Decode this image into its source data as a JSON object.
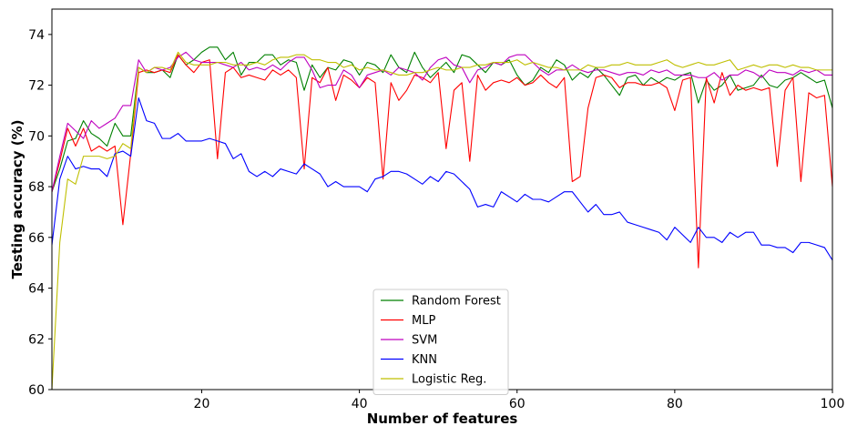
{
  "chart_data": {
    "type": "line",
    "xlabel": "Number of features",
    "ylabel": "Testing accuracy (%)",
    "xlim": [
      1,
      100
    ],
    "ylim": [
      60,
      75
    ],
    "xticks": [
      20,
      40,
      60,
      80,
      100
    ],
    "yticks": [
      60,
      62,
      64,
      66,
      68,
      70,
      72,
      74
    ],
    "grid": false,
    "legend_position": "bottom-center",
    "x": [
      1,
      2,
      3,
      4,
      5,
      6,
      7,
      8,
      9,
      10,
      11,
      12,
      13,
      14,
      15,
      16,
      17,
      18,
      19,
      20,
      21,
      22,
      23,
      24,
      25,
      26,
      27,
      28,
      29,
      30,
      31,
      32,
      33,
      34,
      35,
      36,
      37,
      38,
      39,
      40,
      41,
      42,
      43,
      44,
      45,
      46,
      47,
      48,
      49,
      50,
      51,
      52,
      53,
      54,
      55,
      56,
      57,
      58,
      59,
      60,
      61,
      62,
      63,
      64,
      65,
      66,
      67,
      68,
      69,
      70,
      71,
      72,
      73,
      74,
      75,
      76,
      77,
      78,
      79,
      80,
      81,
      82,
      83,
      84,
      85,
      86,
      87,
      88,
      89,
      90,
      91,
      92,
      93,
      94,
      95,
      96,
      97,
      98,
      99,
      100
    ],
    "series": [
      {
        "name": "Random Forest",
        "color": "#008000",
        "values": [
          67.8,
          68.7,
          69.8,
          69.9,
          70.6,
          70.1,
          69.9,
          69.6,
          70.5,
          70.0,
          70.0,
          72.7,
          72.5,
          72.5,
          72.6,
          72.3,
          73.2,
          72.8,
          73.0,
          73.3,
          73.5,
          73.5,
          73.0,
          73.3,
          72.4,
          72.9,
          72.9,
          73.2,
          73.2,
          72.8,
          73.0,
          72.9,
          71.8,
          72.8,
          72.3,
          72.7,
          72.6,
          73.0,
          72.9,
          72.4,
          72.9,
          72.8,
          72.5,
          73.2,
          72.7,
          72.5,
          73.3,
          72.7,
          72.3,
          72.6,
          72.9,
          72.5,
          73.2,
          73.1,
          72.8,
          72.5,
          72.9,
          72.8,
          73.0,
          72.4,
          72.0,
          72.2,
          72.7,
          72.5,
          73.0,
          72.8,
          72.2,
          72.5,
          72.3,
          72.7,
          72.4,
          72.0,
          71.6,
          72.3,
          72.4,
          72.0,
          72.3,
          72.1,
          72.3,
          72.2,
          72.4,
          72.5,
          71.3,
          72.2,
          71.8,
          72.0,
          72.4,
          71.8,
          71.9,
          72.0,
          72.4,
          72.0,
          71.9,
          72.2,
          72.3,
          72.5,
          72.3,
          72.1,
          72.2,
          71.1
        ]
      },
      {
        "name": "MLP",
        "color": "#ff0000",
        "values": [
          67.8,
          69.0,
          70.3,
          69.6,
          70.3,
          69.4,
          69.6,
          69.4,
          69.6,
          66.5,
          69.3,
          72.5,
          72.6,
          72.5,
          72.6,
          72.5,
          73.2,
          72.8,
          72.5,
          72.9,
          73.0,
          69.1,
          72.5,
          72.7,
          72.3,
          72.4,
          72.3,
          72.2,
          72.6,
          72.4,
          72.6,
          72.3,
          68.7,
          72.3,
          72.1,
          72.7,
          71.4,
          72.4,
          72.2,
          71.9,
          72.3,
          72.1,
          68.3,
          72.1,
          71.4,
          71.8,
          72.4,
          72.3,
          72.1,
          72.5,
          69.5,
          71.8,
          72.1,
          69.0,
          72.4,
          71.8,
          72.1,
          72.2,
          72.1,
          72.3,
          72.0,
          72.1,
          72.4,
          72.1,
          71.9,
          72.3,
          68.2,
          68.4,
          71.1,
          72.3,
          72.4,
          72.3,
          71.9,
          72.1,
          72.1,
          72.0,
          72.0,
          72.1,
          71.9,
          71.0,
          72.2,
          72.3,
          64.8,
          72.3,
          71.3,
          72.5,
          71.6,
          72.0,
          71.8,
          71.9,
          71.8,
          71.9,
          68.8,
          71.8,
          72.3,
          68.2,
          71.7,
          71.5,
          71.6,
          68.0
        ]
      },
      {
        "name": "SVM",
        "color": "#bf00bf",
        "values": [
          67.8,
          69.2,
          70.5,
          70.2,
          69.9,
          70.6,
          70.3,
          70.5,
          70.7,
          71.2,
          71.2,
          73.0,
          72.5,
          72.7,
          72.6,
          72.7,
          73.1,
          73.3,
          73.0,
          72.9,
          72.9,
          72.9,
          72.8,
          72.7,
          72.9,
          72.6,
          72.7,
          72.6,
          72.8,
          72.6,
          72.9,
          73.1,
          73.1,
          72.6,
          71.9,
          72.0,
          72.0,
          72.6,
          72.4,
          71.9,
          72.4,
          72.5,
          72.6,
          72.4,
          72.7,
          72.6,
          72.5,
          72.2,
          72.7,
          73.0,
          73.1,
          72.8,
          72.7,
          72.1,
          72.6,
          72.7,
          72.9,
          72.8,
          73.1,
          73.2,
          73.2,
          72.9,
          72.6,
          72.4,
          72.6,
          72.6,
          72.8,
          72.6,
          72.5,
          72.6,
          72.6,
          72.5,
          72.4,
          72.5,
          72.5,
          72.4,
          72.6,
          72.5,
          72.6,
          72.4,
          72.4,
          72.4,
          72.3,
          72.3,
          72.5,
          72.2,
          72.4,
          72.4,
          72.6,
          72.5,
          72.3,
          72.6,
          72.5,
          72.5,
          72.4,
          72.6,
          72.5,
          72.6,
          72.4,
          72.4
        ]
      },
      {
        "name": "KNN",
        "color": "#0000ff",
        "values": [
          65.7,
          68.3,
          69.2,
          68.7,
          68.8,
          68.7,
          68.7,
          68.4,
          69.3,
          69.4,
          69.2,
          71.5,
          70.6,
          70.5,
          69.9,
          69.9,
          70.1,
          69.8,
          69.8,
          69.8,
          69.9,
          69.8,
          69.7,
          69.1,
          69.3,
          68.6,
          68.4,
          68.6,
          68.4,
          68.7,
          68.6,
          68.5,
          68.9,
          68.7,
          68.5,
          68.0,
          68.2,
          68.0,
          68.0,
          68.0,
          67.8,
          68.3,
          68.4,
          68.6,
          68.6,
          68.5,
          68.3,
          68.1,
          68.4,
          68.2,
          68.6,
          68.5,
          68.2,
          67.9,
          67.2,
          67.3,
          67.2,
          67.8,
          67.6,
          67.4,
          67.7,
          67.5,
          67.5,
          67.4,
          67.6,
          67.8,
          67.8,
          67.4,
          67.0,
          67.3,
          66.9,
          66.9,
          67.0,
          66.6,
          66.5,
          66.4,
          66.3,
          66.2,
          65.9,
          66.4,
          66.1,
          65.8,
          66.4,
          66.0,
          66.0,
          65.8,
          66.2,
          66.0,
          66.2,
          66.2,
          65.7,
          65.7,
          65.6,
          65.6,
          65.4,
          65.8,
          65.8,
          65.7,
          65.6,
          65.1
        ]
      },
      {
        "name": "Logistic Reg.",
        "color": "#bfbf00",
        "values": [
          60.0,
          65.8,
          68.3,
          68.1,
          69.2,
          69.2,
          69.2,
          69.1,
          69.2,
          69.7,
          69.5,
          72.7,
          72.5,
          72.7,
          72.7,
          72.6,
          73.3,
          72.9,
          72.8,
          72.8,
          72.8,
          72.9,
          72.9,
          72.8,
          72.8,
          72.8,
          72.9,
          72.8,
          73.0,
          73.1,
          73.1,
          73.2,
          73.2,
          73.0,
          73.0,
          72.9,
          72.9,
          72.7,
          72.8,
          72.6,
          72.7,
          72.6,
          72.6,
          72.5,
          72.4,
          72.4,
          72.5,
          72.5,
          72.6,
          72.7,
          72.6,
          72.6,
          72.7,
          72.7,
          72.8,
          72.8,
          72.9,
          72.9,
          72.9,
          73.0,
          72.8,
          72.9,
          72.8,
          72.7,
          72.7,
          72.6,
          72.6,
          72.6,
          72.8,
          72.7,
          72.7,
          72.8,
          72.8,
          72.9,
          72.8,
          72.8,
          72.8,
          72.9,
          73.0,
          72.8,
          72.7,
          72.8,
          72.9,
          72.8,
          72.8,
          72.9,
          73.0,
          72.6,
          72.7,
          72.8,
          72.7,
          72.8,
          72.8,
          72.7,
          72.8,
          72.7,
          72.7,
          72.6,
          72.6,
          72.6
        ]
      }
    ]
  }
}
